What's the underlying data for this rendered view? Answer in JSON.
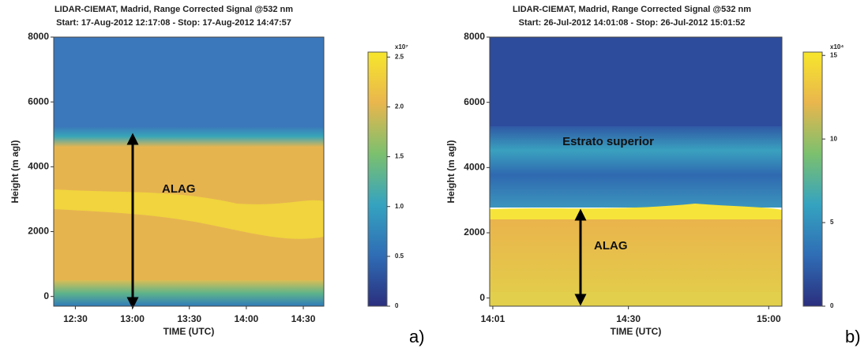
{
  "chart_data": [
    {
      "type": "heatmap",
      "title": [
        "LIDAR-CIEMAT, Madrid, Range Corrected Signal @532 nm",
        "Start: 17-Aug-2012 12:17:08 - Stop: 17-Aug-2012 14:47:57"
      ],
      "xlabel": "TIME (UTC)",
      "ylabel": "Height (m agl)",
      "xlim": [
        12.31,
        14.68
      ],
      "xticks": [
        {
          "value": 12.5,
          "label": "12:30"
        },
        {
          "value": 13,
          "label": "13:00"
        },
        {
          "value": 13.5,
          "label": "13:30"
        },
        {
          "value": 14,
          "label": "14:00"
        },
        {
          "value": 14.5,
          "label": "14:30"
        }
      ],
      "ylim": [
        -300,
        8000
      ],
      "yticks": [
        0,
        2000,
        4000,
        6000,
        8000
      ],
      "colorbar_label": "x10⁷",
      "clim": [
        0,
        2.55
      ],
      "cticks": [
        0,
        0.5,
        {
          "value": 1,
          "label": "1.0"
        },
        1.5,
        {
          "value": 2,
          "label": "2.0"
        },
        2.5
      ],
      "colormap": [
        "#2b2f7e",
        "#2f6db5",
        "#35a3c0",
        "#7cc06e",
        "#e9b64d",
        "#f7e62c"
      ],
      "annotations": [
        "ALAG"
      ],
      "panel_label": "a)"
    },
    {
      "type": "heatmap",
      "title": [
        "LIDAR-CIEMAT, Madrid, Range Corrected Signal @532 nm",
        "Start: 26-Jul-2012 14:01:08 - Stop: 26-Jul-2012 15:01:52"
      ],
      "xlabel": "TIME (UTC)",
      "ylabel": "Height (m agl)",
      "xlim": [
        14.0056,
        15.047
      ],
      "xticks": [
        {
          "value": 14.0167,
          "label": "14:01"
        },
        {
          "value": 14.5,
          "label": "14:30"
        },
        {
          "value": 15,
          "label": "15:00"
        }
      ],
      "ylim": [
        -250,
        8000
      ],
      "yticks": [
        0,
        2000,
        4000,
        6000,
        8000
      ],
      "colorbar_label": "x10⁴",
      "clim": [
        0,
        15.2
      ],
      "cticks": [
        0,
        5,
        10,
        15
      ],
      "colormap": [
        "#2b2f7e",
        "#2f6db5",
        "#35a3c0",
        "#7cc06e",
        "#e9b64d",
        "#f7e62c"
      ],
      "annotations": [
        "Estrato superior",
        "ALAG"
      ],
      "panel_label": "b)"
    }
  ]
}
